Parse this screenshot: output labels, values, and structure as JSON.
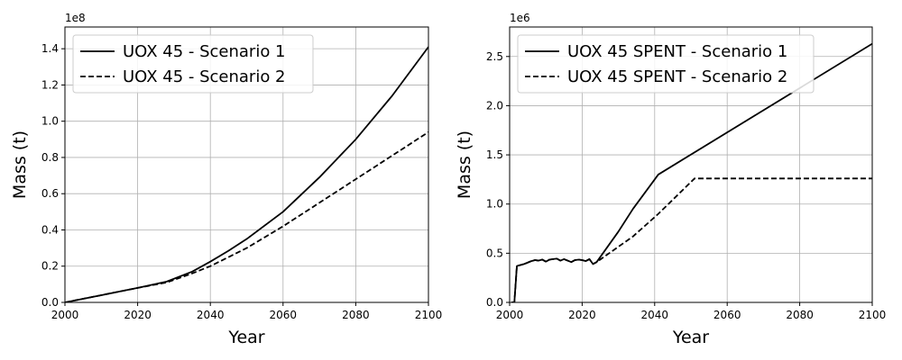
{
  "chart_data": [
    {
      "type": "line",
      "title": "",
      "xlabel": "Year",
      "ylabel": "Mass (t)",
      "y_offset_label": "1e8",
      "xlim": [
        2000,
        2100
      ],
      "ylim": [
        0,
        1.52
      ],
      "xticks": [
        2000,
        2020,
        2040,
        2060,
        2080,
        2100
      ],
      "xtick_labels": [
        "2000",
        "2020",
        "2040",
        "2060",
        "2080",
        "2100"
      ],
      "yticks": [
        0.0,
        0.2,
        0.4,
        0.6,
        0.8,
        1.0,
        1.2,
        1.4
      ],
      "ytick_labels": [
        "0.0",
        "0.2",
        "0.4",
        "0.6",
        "0.8",
        "1.0",
        "1.2",
        "1.4"
      ],
      "grid": true,
      "legend_position": "top-left",
      "series": [
        {
          "name": "UOX 45 - Scenario 1",
          "color": "#000000",
          "linestyle": "solid",
          "x": [
            2000,
            2010,
            2020,
            2028,
            2035,
            2040,
            2045,
            2050,
            2060,
            2070,
            2080,
            2090,
            2100
          ],
          "y": [
            0.0,
            0.04,
            0.08,
            0.115,
            0.17,
            0.225,
            0.285,
            0.35,
            0.5,
            0.69,
            0.9,
            1.14,
            1.41
          ]
        },
        {
          "name": "UOX 45 - Scenario 2",
          "color": "#000000",
          "linestyle": "dashed",
          "x": [
            2000,
            2010,
            2020,
            2028,
            2035,
            2040,
            2045,
            2050,
            2060,
            2070,
            2080,
            2090,
            2100
          ],
          "y": [
            0.0,
            0.04,
            0.08,
            0.11,
            0.16,
            0.2,
            0.25,
            0.3,
            0.42,
            0.55,
            0.68,
            0.81,
            0.94
          ]
        }
      ]
    },
    {
      "type": "line",
      "title": "",
      "xlabel": "Year",
      "ylabel": "Mass (t)",
      "y_offset_label": "1e6",
      "xlim": [
        2000,
        2100
      ],
      "ylim": [
        0,
        2.8
      ],
      "xticks": [
        2000,
        2020,
        2040,
        2060,
        2080,
        2100
      ],
      "xtick_labels": [
        "2000",
        "2020",
        "2040",
        "2060",
        "2080",
        "2100"
      ],
      "yticks": [
        0.0,
        0.5,
        1.0,
        1.5,
        2.0,
        2.5
      ],
      "ytick_labels": [
        "0.0",
        "0.5",
        "1.0",
        "1.5",
        "2.0",
        "2.5"
      ],
      "grid": true,
      "legend_position": "top-left",
      "series": [
        {
          "name": "UOX 45 SPENT - Scenario 1",
          "color": "#000000",
          "linestyle": "solid",
          "x": [
            2000.5,
            2001.3,
            2002,
            2004,
            2006,
            2007,
            2008,
            2009,
            2010,
            2011,
            2012,
            2013,
            2014,
            2015,
            2016,
            2017,
            2018,
            2019,
            2020,
            2021,
            2022,
            2023,
            2024,
            2030,
            2034,
            2041,
            2100
          ],
          "y": [
            0.0,
            0.0,
            0.37,
            0.39,
            0.42,
            0.43,
            0.425,
            0.435,
            0.415,
            0.435,
            0.44,
            0.445,
            0.425,
            0.44,
            0.425,
            0.41,
            0.43,
            0.435,
            0.43,
            0.42,
            0.44,
            0.39,
            0.41,
            0.72,
            0.95,
            1.3,
            2.63
          ]
        },
        {
          "name": "UOX 45 SPENT - Scenario 2",
          "color": "#000000",
          "linestyle": "dashed",
          "x": [
            2000.5,
            2001.3,
            2002,
            2004,
            2006,
            2007,
            2008,
            2009,
            2010,
            2011,
            2012,
            2013,
            2014,
            2015,
            2016,
            2017,
            2018,
            2019,
            2020,
            2021,
            2022,
            2023,
            2024,
            2034,
            2041,
            2051,
            2100
          ],
          "y": [
            0.0,
            0.0,
            0.37,
            0.39,
            0.42,
            0.43,
            0.425,
            0.435,
            0.415,
            0.435,
            0.44,
            0.445,
            0.425,
            0.44,
            0.425,
            0.41,
            0.43,
            0.435,
            0.43,
            0.42,
            0.44,
            0.39,
            0.41,
            0.67,
            0.9,
            1.26,
            1.26
          ]
        }
      ]
    }
  ]
}
